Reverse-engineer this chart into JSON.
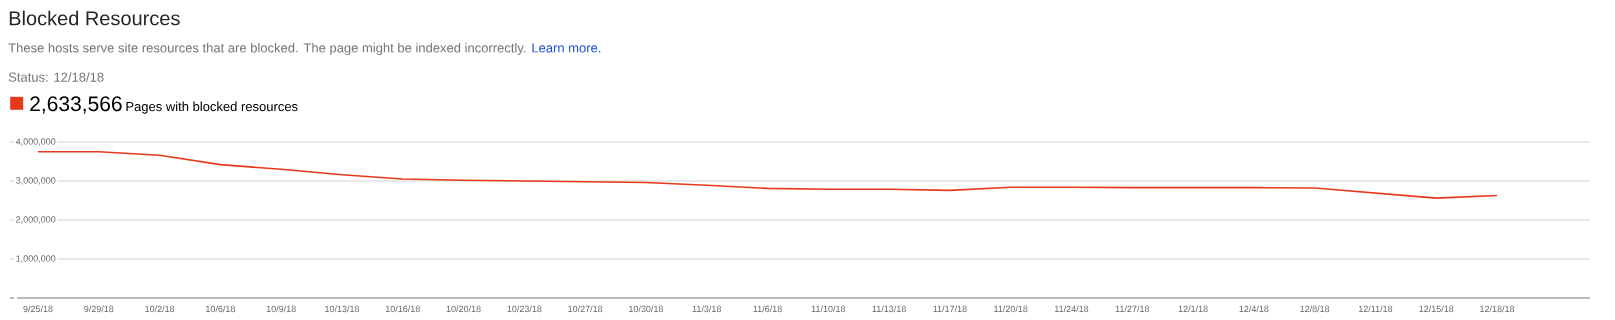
{
  "chart_data": {
    "type": "line",
    "title": "Blocked Resources",
    "subtitle": "These hosts serve site resources that are blocked. The page might be indexed incorrectly.",
    "annotations": [
      "Learn more.",
      "Status: 12/18/18",
      "2,633,566"
    ],
    "categories": [
      "9/25/18",
      "9/29/18",
      "10/2/18",
      "10/6/18",
      "10/9/18",
      "10/13/18",
      "10/16/18",
      "10/20/18",
      "10/23/18",
      "10/27/18",
      "10/30/18",
      "11/3/18",
      "11/6/18",
      "11/10/18",
      "11/13/18",
      "11/17/18",
      "11/20/18",
      "11/24/18",
      "11/27/18",
      "12/1/18",
      "12/4/18",
      "12/8/18",
      "12/11/18",
      "12/15/18",
      "12/18/18"
    ],
    "series": [
      {
        "name": "Pages with blocked resources",
        "color": "#e8381b",
        "values": [
          3750000,
          3750000,
          3660000,
          3420000,
          3300000,
          3160000,
          3050000,
          3020000,
          3000000,
          2980000,
          2960000,
          2890000,
          2810000,
          2790000,
          2790000,
          2760000,
          2840000,
          2840000,
          2830000,
          2830000,
          2830000,
          2820000,
          2690000,
          2560000,
          2630000
        ]
      }
    ],
    "ylim": [
      0,
      4000000
    ],
    "yticks": [
      {
        "value": 0,
        "label": null
      },
      {
        "value": 1000000,
        "label": "1,000,000"
      },
      {
        "value": 2000000,
        "label": "2,000,000"
      },
      {
        "value": 3000000,
        "label": "3,000,000"
      },
      {
        "value": 4000000,
        "label": "4,000,000"
      }
    ],
    "grid": "y",
    "legend": "top left"
  }
}
